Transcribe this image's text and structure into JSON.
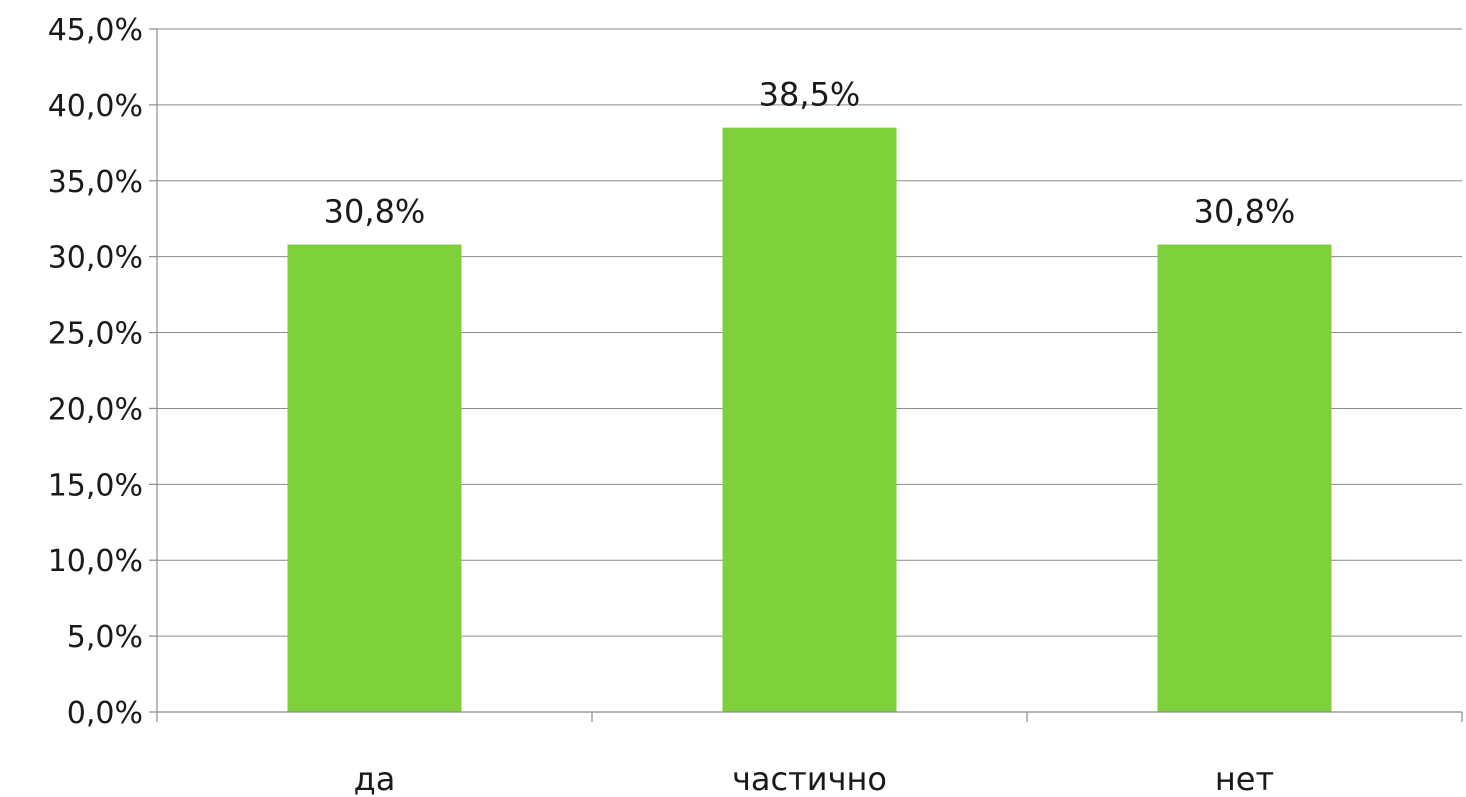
{
  "chart_data": {
    "type": "bar",
    "categories": [
      "да",
      "частично",
      "нет"
    ],
    "values": [
      30.8,
      38.5,
      30.8
    ],
    "data_labels": [
      "30,8%",
      "38,5%",
      "30,8%"
    ],
    "ylim": [
      0,
      45
    ],
    "y_ticks": [
      0,
      5,
      10,
      15,
      20,
      25,
      30,
      35,
      40,
      45
    ],
    "y_tick_labels": [
      "0,0%",
      "5,0%",
      "10,0%",
      "15,0%",
      "20,0%",
      "25,0%",
      "30,0%",
      "35,0%",
      "40,0%",
      "45,0%"
    ],
    "title": "",
    "xlabel": "",
    "ylabel": "",
    "grid": true,
    "legend": "none",
    "bar_color": "#7fd13b"
  }
}
